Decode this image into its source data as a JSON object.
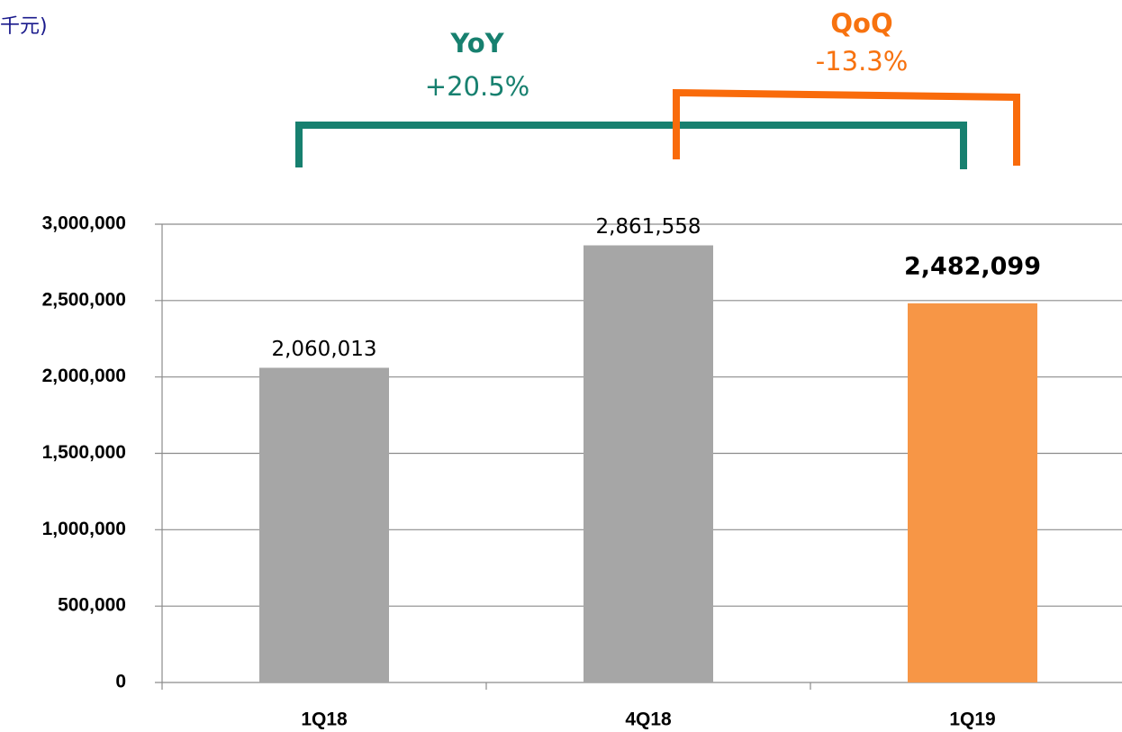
{
  "chart_data": {
    "type": "bar",
    "unit_label": "千元)",
    "categories": [
      "1Q18",
      "4Q18",
      "1Q19"
    ],
    "values": [
      2060013,
      2861558,
      2482099
    ],
    "value_labels": [
      "2,060,013",
      "2,861,558",
      "2,482,099"
    ],
    "bold_value_labels": [
      false,
      false,
      true
    ],
    "colors": [
      "#a6a6a6",
      "#a6a6a6",
      "#f79646"
    ],
    "ylim": [
      0,
      3000000
    ],
    "yticks": [
      0,
      {
        "value": 500000,
        "label": "500,000"
      },
      {
        "value": 1000000,
        "label": "1,000,000"
      },
      {
        "value": 1500000,
        "label": "1,500,000"
      },
      {
        "value": 2000000,
        "label": "2,000,000"
      },
      {
        "value": 2500000,
        "label": "2,500,000"
      },
      {
        "value": 3000000,
        "label": "3,000,000"
      }
    ],
    "grid": true,
    "annotations": [
      {
        "title": "YoY",
        "text": "+20.5%",
        "color": "#17806f"
      },
      {
        "title": "QoQ",
        "text": "-13.3%",
        "color": "#f7720f"
      }
    ]
  }
}
